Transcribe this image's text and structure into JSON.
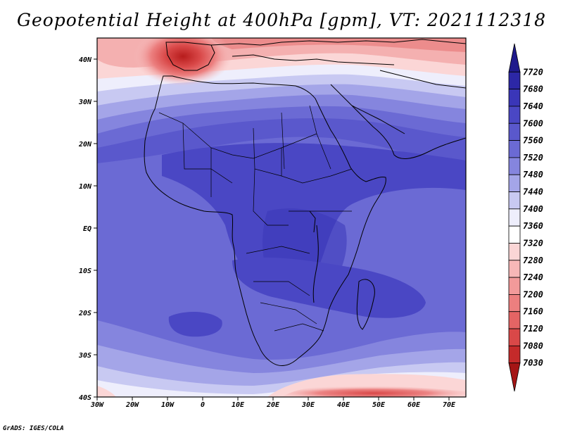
{
  "title": "Geopotential Height at 400hPa [gpm], VT: 2021112318",
  "credit": "GrADS: IGES/COLA",
  "map": {
    "lon_labels": [
      "30W",
      "20W",
      "10W",
      "0",
      "10E",
      "20E",
      "30E",
      "40E",
      "50E",
      "60E",
      "70E"
    ],
    "lat_labels": [
      "40N",
      "30N",
      "20N",
      "10N",
      "EQ",
      "10S",
      "20S",
      "30S",
      "40S"
    ]
  },
  "colorbar": {
    "levels": [
      "7720",
      "7680",
      "7640",
      "7600",
      "7560",
      "7520",
      "7480",
      "7440",
      "7400",
      "7360",
      "7320",
      "7280",
      "7240",
      "7200",
      "7160",
      "7120",
      "7080",
      "7030"
    ],
    "colors": [
      "#1f1a8c",
      "#2c27a6",
      "#3a36b8",
      "#4a47c4",
      "#5a58cc",
      "#6b6ad4",
      "#8585de",
      "#a4a5e8",
      "#c8c9f2",
      "#eeeefc",
      "#ffffff",
      "#fbd6d6",
      "#f7b7b7",
      "#f29a9a",
      "#ec7f7f",
      "#e46464",
      "#d94848",
      "#c42a2a",
      "#a51515"
    ]
  }
}
